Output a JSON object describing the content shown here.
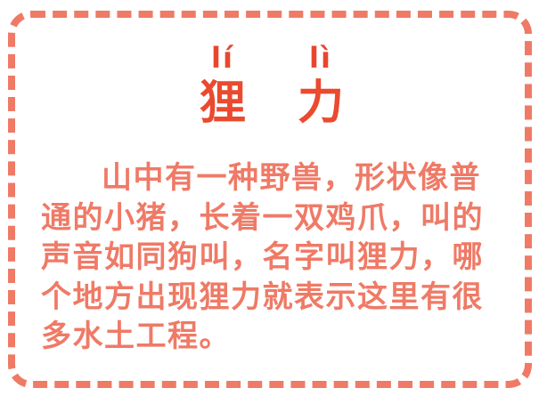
{
  "title": {
    "chars": [
      {
        "pinyin": "lí",
        "hanzi": "狸"
      },
      {
        "pinyin": "lì",
        "hanzi": "力"
      }
    ]
  },
  "description": "山中有一种野兽，形状像普通的小猪，长着一双鸡爪，叫的声音如同狗叫，名字叫狸力，哪个地方出现狸力就表示这里有很多水土工程。",
  "colors": {
    "border": "#ef7a66",
    "title": "#ea4a2e",
    "body_text": "#ef7a66"
  }
}
